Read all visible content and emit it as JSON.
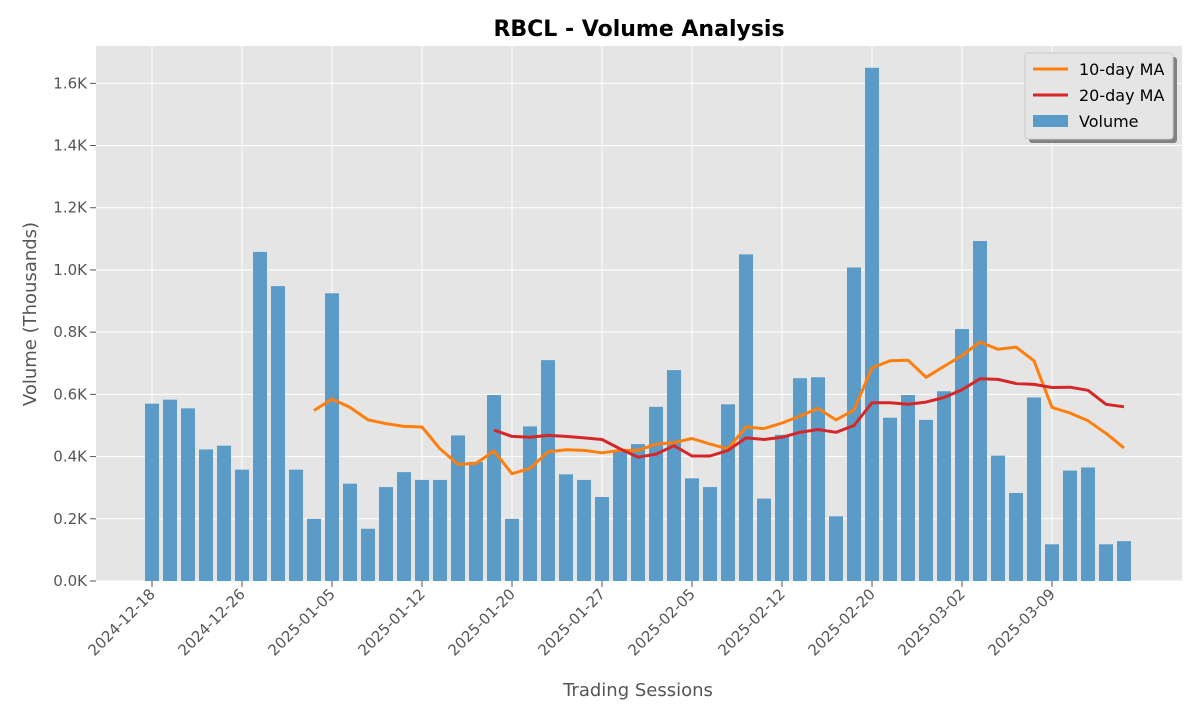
{
  "chart_data": {
    "type": "bar",
    "title": "RBCL - Volume Analysis",
    "xlabel": "Trading Sessions",
    "ylabel": "Volume (Thousands)",
    "ylim": [
      0,
      1720
    ],
    "grid": true,
    "legend_position": "top-right",
    "y_ticks": [
      0,
      200,
      400,
      600,
      800,
      1000,
      1200,
      1400,
      1600
    ],
    "y_tick_labels": [
      "0.0K",
      "0.2K",
      "0.4K",
      "0.6K",
      "0.8K",
      "1.0K",
      "1.2K",
      "1.4K",
      "1.6K"
    ],
    "x_tick_labels": [
      {
        "index": 0,
        "label": "2024-12-18"
      },
      {
        "index": 5,
        "label": "2024-12-26"
      },
      {
        "index": 10,
        "label": "2025-01-05"
      },
      {
        "index": 15,
        "label": "2025-01-12"
      },
      {
        "index": 20,
        "label": "2025-01-20"
      },
      {
        "index": 25,
        "label": "2025-01-27"
      },
      {
        "index": 30,
        "label": "2025-02-05"
      },
      {
        "index": 35,
        "label": "2025-02-12"
      },
      {
        "index": 40,
        "label": "2025-02-20"
      },
      {
        "index": 45,
        "label": "2025-03-02"
      },
      {
        "index": 50,
        "label": "2025-03-09"
      }
    ],
    "volume": [
      570,
      583,
      555,
      423,
      435,
      358,
      1058,
      948,
      358,
      200,
      925,
      313,
      168,
      302,
      350,
      325,
      325,
      468,
      383,
      598,
      200,
      497,
      710,
      343,
      325,
      270,
      418,
      440,
      560,
      678,
      330,
      302,
      568,
      1050,
      265,
      470,
      652,
      655,
      208,
      1008,
      1650,
      525,
      598,
      518,
      610,
      810,
      1093,
      403,
      283,
      590,
      118,
      355,
      365,
      118,
      128
    ],
    "series": [
      {
        "name": "10-day MA",
        "color": "#ff7f0e",
        "start_index": 9,
        "values": [
          548,
          585,
          558,
          518,
          506,
          497,
          495,
          425,
          375,
          378,
          418,
          345,
          362,
          415,
          422,
          420,
          412,
          420,
          420,
          440,
          445,
          458,
          440,
          425,
          495,
          490,
          508,
          530,
          555,
          518,
          550,
          685,
          708,
          710,
          655,
          690,
          725,
          768,
          745,
          752,
          708,
          558,
          540,
          515,
          475,
          428
        ]
      },
      {
        "name": "20-day MA",
        "color": "#d62728",
        "start_index": 19,
        "values": [
          485,
          465,
          462,
          468,
          465,
          460,
          455,
          425,
          398,
          408,
          435,
          402,
          402,
          420,
          460,
          455,
          462,
          478,
          487,
          478,
          500,
          573,
          573,
          568,
          575,
          590,
          615,
          650,
          648,
          635,
          632,
          622,
          623,
          613,
          568,
          560
        ]
      },
      {
        "name": "Volume",
        "color": "#5b9bc7",
        "kind": "bar"
      }
    ]
  }
}
